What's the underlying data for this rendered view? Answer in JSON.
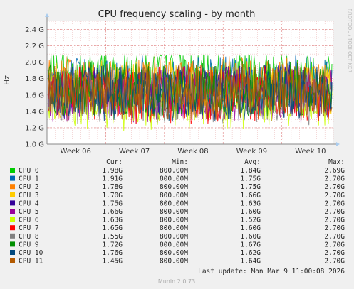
{
  "chart_data": {
    "type": "line",
    "title": "CPU frequency scaling - by month",
    "ylabel": "Hz",
    "side_label": "RRDTOOL / TOBI OETIKER",
    "x_ticks": [
      "Week 06",
      "Week 07",
      "Week 08",
      "Week 09",
      "Week 10"
    ],
    "y_ticks": [
      "1.0 G",
      "1.2 G",
      "1.4 G",
      "1.6 G",
      "1.8 G",
      "2.0 G",
      "2.2 G",
      "2.4 G"
    ],
    "ylim": [
      1.0,
      2.5
    ],
    "grid": true,
    "legend_headers": [
      "Cur:",
      "Min:",
      "Avg:",
      "Max:"
    ],
    "series": [
      {
        "name": "CPU 0",
        "color": "#00cc00",
        "cur": "1.98G",
        "min": "800.00M",
        "avg": "1.84G",
        "max": "2.69G"
      },
      {
        "name": "CPU 1",
        "color": "#0066b3",
        "cur": "1.91G",
        "min": "800.00M",
        "avg": "1.75G",
        "max": "2.70G"
      },
      {
        "name": "CPU 2",
        "color": "#ff8000",
        "cur": "1.78G",
        "min": "800.00M",
        "avg": "1.75G",
        "max": "2.70G"
      },
      {
        "name": "CPU 3",
        "color": "#ffcc00",
        "cur": "1.70G",
        "min": "800.00M",
        "avg": "1.66G",
        "max": "2.70G"
      },
      {
        "name": "CPU 4",
        "color": "#330099",
        "cur": "1.75G",
        "min": "800.00M",
        "avg": "1.63G",
        "max": "2.70G"
      },
      {
        "name": "CPU 5",
        "color": "#990099",
        "cur": "1.66G",
        "min": "800.00M",
        "avg": "1.60G",
        "max": "2.70G"
      },
      {
        "name": "CPU 6",
        "color": "#ccff00",
        "cur": "1.63G",
        "min": "800.00M",
        "avg": "1.52G",
        "max": "2.70G"
      },
      {
        "name": "CPU 7",
        "color": "#ff0000",
        "cur": "1.65G",
        "min": "800.00M",
        "avg": "1.60G",
        "max": "2.70G"
      },
      {
        "name": "CPU 8",
        "color": "#808080",
        "cur": "1.55G",
        "min": "800.00M",
        "avg": "1.60G",
        "max": "2.70G"
      },
      {
        "name": "CPU 9",
        "color": "#008f00",
        "cur": "1.72G",
        "min": "800.00M",
        "avg": "1.67G",
        "max": "2.70G"
      },
      {
        "name": "CPU 10",
        "color": "#00487d",
        "cur": "1.76G",
        "min": "800.00M",
        "avg": "1.62G",
        "max": "2.70G"
      },
      {
        "name": "CPU 11",
        "color": "#b35a00",
        "cur": "1.45G",
        "min": "800.00M",
        "avg": "1.64G",
        "max": "2.70G"
      }
    ]
  },
  "last_update": "Last update: Mon Mar  9 11:00:08 2026",
  "footer": "Munin 2.0.73"
}
